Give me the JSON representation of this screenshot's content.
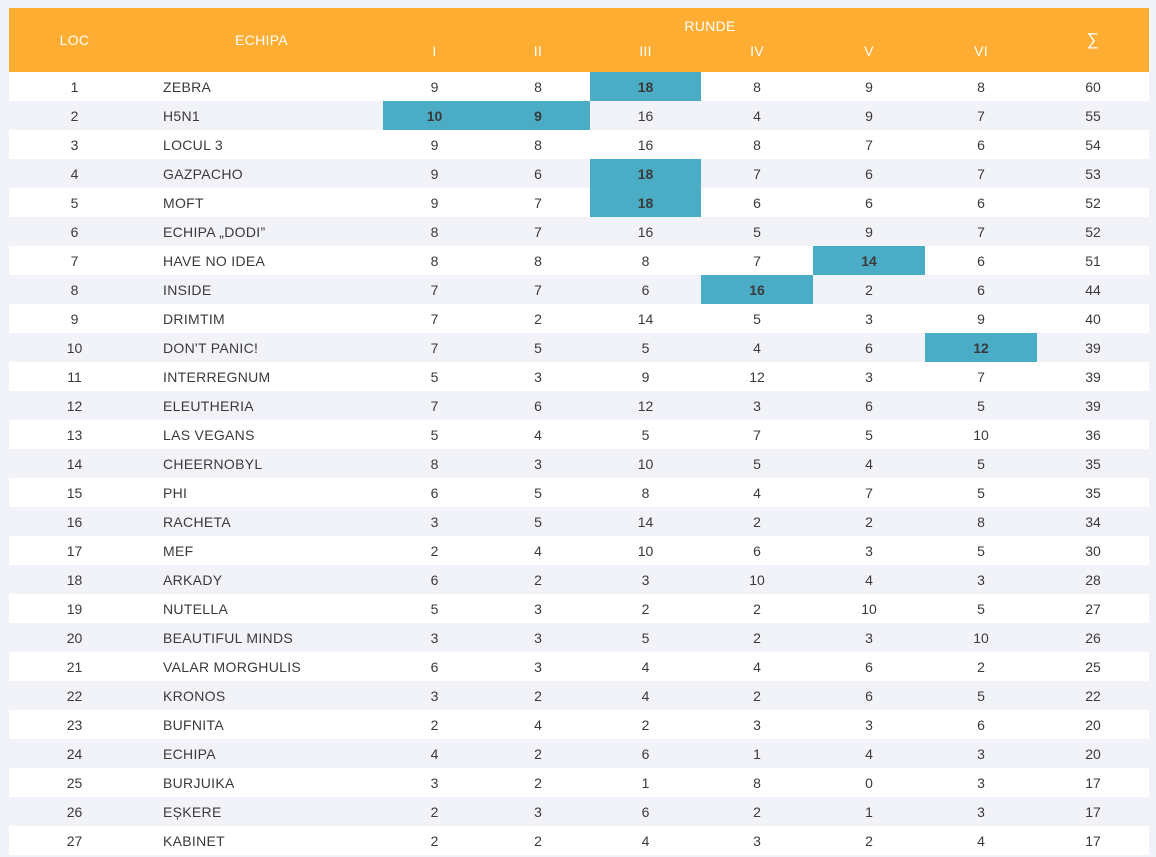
{
  "header": {
    "loc": "LOC",
    "team": "ECHIPA",
    "rounds_group": "RUNDE",
    "rounds": [
      "I",
      "II",
      "III",
      "IV",
      "V",
      "VI"
    ],
    "sum": "∑"
  },
  "colors": {
    "header_bg": "#ffad33",
    "highlight": "#4bacc6",
    "row_alt": "#f2f3f8"
  },
  "rows": [
    {
      "loc": "1",
      "team": "ZEBRA",
      "scores": [
        "9",
        "8",
        "18",
        "8",
        "9",
        "8"
      ],
      "sum": "60",
      "highlight": [
        2
      ]
    },
    {
      "loc": "2",
      "team": "H5N1",
      "scores": [
        "10",
        "9",
        "16",
        "4",
        "9",
        "7"
      ],
      "sum": "55",
      "highlight": [
        0,
        1
      ]
    },
    {
      "loc": "3",
      "team": "LOCUL 3",
      "scores": [
        "9",
        "8",
        "16",
        "8",
        "7",
        "6"
      ],
      "sum": "54",
      "highlight": []
    },
    {
      "loc": "4",
      "team": "GAZPACHO",
      "scores": [
        "9",
        "6",
        "18",
        "7",
        "6",
        "7"
      ],
      "sum": "53",
      "highlight": [
        2
      ]
    },
    {
      "loc": "5",
      "team": "MOFT",
      "scores": [
        "9",
        "7",
        "18",
        "6",
        "6",
        "6"
      ],
      "sum": "52",
      "highlight": [
        2
      ]
    },
    {
      "loc": "6",
      "team": "ECHIPA „DODI”",
      "scores": [
        "8",
        "7",
        "16",
        "5",
        "9",
        "7"
      ],
      "sum": "52",
      "highlight": []
    },
    {
      "loc": "7",
      "team": "HAVE NO IDEA",
      "scores": [
        "8",
        "8",
        "8",
        "7",
        "14",
        "6"
      ],
      "sum": "51",
      "highlight": [
        4
      ]
    },
    {
      "loc": "8",
      "team": "INSIDE",
      "scores": [
        "7",
        "7",
        "6",
        "16",
        "2",
        "6"
      ],
      "sum": "44",
      "highlight": [
        3
      ]
    },
    {
      "loc": "9",
      "team": "DRIMTIM",
      "scores": [
        "7",
        "2",
        "14",
        "5",
        "3",
        "9"
      ],
      "sum": "40",
      "highlight": []
    },
    {
      "loc": "10",
      "team": "DON'T PANIC!",
      "scores": [
        "7",
        "5",
        "5",
        "4",
        "6",
        "12"
      ],
      "sum": "39",
      "highlight": [
        5
      ]
    },
    {
      "loc": "11",
      "team": "INTERREGNUM",
      "scores": [
        "5",
        "3",
        "9",
        "12",
        "3",
        "7"
      ],
      "sum": "39",
      "highlight": []
    },
    {
      "loc": "12",
      "team": "ELEUTHERIA",
      "scores": [
        "7",
        "6",
        "12",
        "3",
        "6",
        "5"
      ],
      "sum": "39",
      "highlight": []
    },
    {
      "loc": "13",
      "team": "LAS VEGANS",
      "scores": [
        "5",
        "4",
        "5",
        "7",
        "5",
        "10"
      ],
      "sum": "36",
      "highlight": []
    },
    {
      "loc": "14",
      "team": "CHEERNOBYL",
      "scores": [
        "8",
        "3",
        "10",
        "5",
        "4",
        "5"
      ],
      "sum": "35",
      "highlight": []
    },
    {
      "loc": "15",
      "team": "PHI",
      "scores": [
        "6",
        "5",
        "8",
        "4",
        "7",
        "5"
      ],
      "sum": "35",
      "highlight": []
    },
    {
      "loc": "16",
      "team": "RACHETA",
      "scores": [
        "3",
        "5",
        "14",
        "2",
        "2",
        "8"
      ],
      "sum": "34",
      "highlight": []
    },
    {
      "loc": "17",
      "team": "MEF",
      "scores": [
        "2",
        "4",
        "10",
        "6",
        "3",
        "5"
      ],
      "sum": "30",
      "highlight": []
    },
    {
      "loc": "18",
      "team": "ARKADY",
      "scores": [
        "6",
        "2",
        "3",
        "10",
        "4",
        "3"
      ],
      "sum": "28",
      "highlight": []
    },
    {
      "loc": "19",
      "team": "NUTELLA",
      "scores": [
        "5",
        "3",
        "2",
        "2",
        "10",
        "5"
      ],
      "sum": "27",
      "highlight": []
    },
    {
      "loc": "20",
      "team": "BEAUTIFUL MINDS",
      "scores": [
        "3",
        "3",
        "5",
        "2",
        "3",
        "10"
      ],
      "sum": "26",
      "highlight": []
    },
    {
      "loc": "21",
      "team": "VALAR MORGHULIS",
      "scores": [
        "6",
        "3",
        "4",
        "4",
        "6",
        "2"
      ],
      "sum": "25",
      "highlight": []
    },
    {
      "loc": "22",
      "team": "KRONOS",
      "scores": [
        "3",
        "2",
        "4",
        "2",
        "6",
        "5"
      ],
      "sum": "22",
      "highlight": []
    },
    {
      "loc": "23",
      "team": "BUFNITA",
      "scores": [
        "2",
        "4",
        "2",
        "3",
        "3",
        "6"
      ],
      "sum": "20",
      "highlight": []
    },
    {
      "loc": "24",
      "team": "ECHIPA",
      "scores": [
        "4",
        "2",
        "6",
        "1",
        "4",
        "3"
      ],
      "sum": "20",
      "highlight": []
    },
    {
      "loc": "25",
      "team": "BURJUIKA",
      "scores": [
        "3",
        "2",
        "1",
        "8",
        "0",
        "3"
      ],
      "sum": "17",
      "highlight": []
    },
    {
      "loc": "26",
      "team": "EȘKERE",
      "scores": [
        "2",
        "3",
        "6",
        "2",
        "1",
        "3"
      ],
      "sum": "17",
      "highlight": []
    },
    {
      "loc": "27",
      "team": "KABINET",
      "scores": [
        "2",
        "2",
        "4",
        "3",
        "2",
        "4"
      ],
      "sum": "17",
      "highlight": []
    }
  ]
}
